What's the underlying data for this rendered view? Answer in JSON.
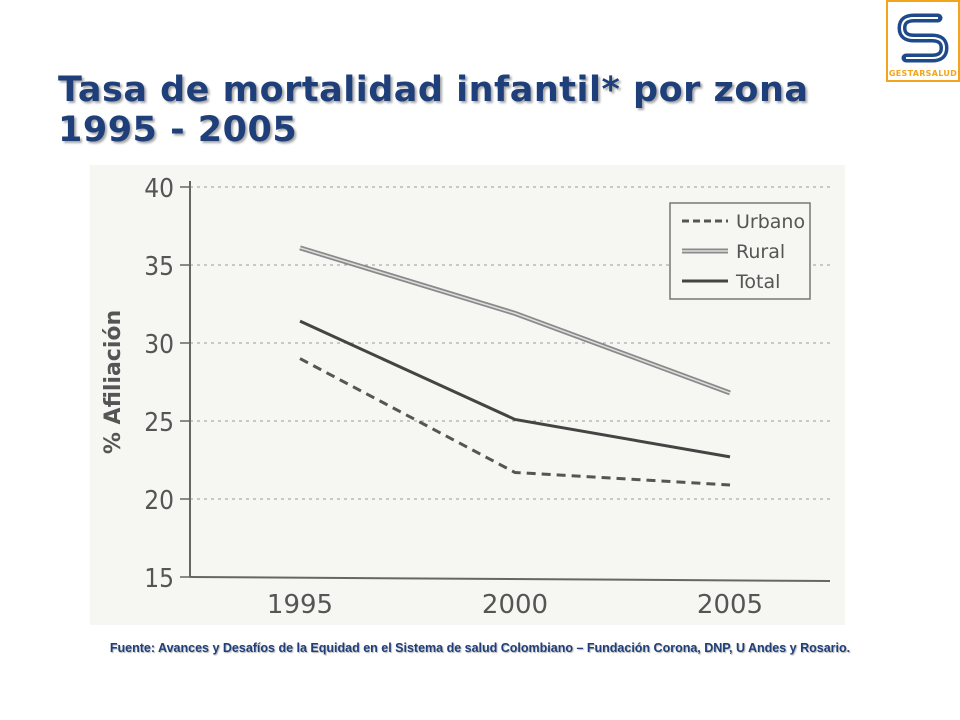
{
  "slide": {
    "title_line1": "Tasa de mortalidad infantil* por zona",
    "title_line2": "1995 - 2005",
    "source": "Fuente: Avances y Desafíos de la Equidad en el Sistema de salud Colombiano – Fundación Corona, DNP, U Andes y Rosario.",
    "logo_text": "GESTARSALUD",
    "logo_colors": {
      "primary": "#1e4a8c",
      "accent": "#f2a51a"
    }
  },
  "chart_data": {
    "type": "line",
    "title": "",
    "xlabel": "",
    "ylabel": "% Afiliación",
    "categories": [
      "1995",
      "2000",
      "2005"
    ],
    "ylim": [
      15,
      40
    ],
    "yticks": [
      "15",
      "20",
      "25",
      "30",
      "35",
      "40"
    ],
    "grid": true,
    "legend_position": "top-right",
    "series": [
      {
        "name": "Urbano",
        "values": [
          29.0,
          21.7,
          20.9
        ],
        "style": "dashed",
        "color": "#555555"
      },
      {
        "name": "Rural",
        "values": [
          36.1,
          31.9,
          26.8
        ],
        "style": "double",
        "color": "#8a8a8a"
      },
      {
        "name": "Total",
        "values": [
          31.4,
          25.1,
          22.7
        ],
        "style": "solid",
        "color": "#444444"
      }
    ]
  }
}
